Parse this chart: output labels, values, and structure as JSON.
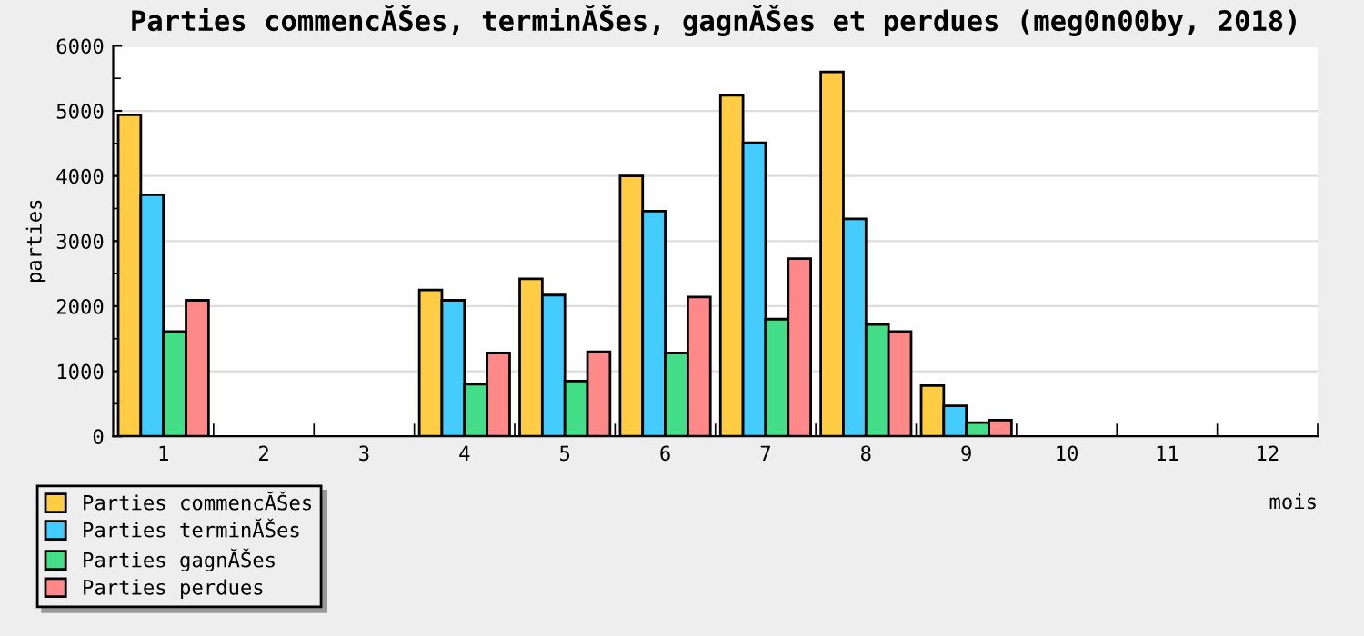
{
  "chart_data": {
    "type": "bar",
    "title": "Parties commencĂŠes, terminĂŠes, gagnĂŠes et perdues (meg0n00by, 2018)",
    "xlabel": "mois",
    "ylabel": "parties",
    "categories": [
      "1",
      "2",
      "3",
      "4",
      "5",
      "6",
      "7",
      "8",
      "9",
      "10",
      "11",
      "12"
    ],
    "series": [
      {
        "name": "Parties commencĂŠes",
        "color": "#ffcc44",
        "values": [
          4940,
          null,
          null,
          2250,
          2420,
          4000,
          5240,
          5600,
          780,
          null,
          null,
          null
        ]
      },
      {
        "name": "Parties terminĂŠes",
        "color": "#44ccff",
        "values": [
          3710,
          null,
          null,
          2090,
          2170,
          3460,
          4510,
          3340,
          470,
          null,
          null,
          null
        ]
      },
      {
        "name": "Parties gagnĂŠes",
        "color": "#44dd88",
        "values": [
          1610,
          null,
          null,
          800,
          850,
          1280,
          1800,
          1720,
          210,
          null,
          null,
          null
        ]
      },
      {
        "name": "Parties perdues",
        "color": "#ff8888",
        "values": [
          2090,
          null,
          null,
          1280,
          1300,
          2140,
          2730,
          1610,
          250,
          null,
          null,
          null
        ]
      }
    ],
    "ylim": [
      0,
      6000
    ],
    "yticks": [
      0,
      1000,
      2000,
      3000,
      4000,
      5000,
      6000
    ],
    "grid": "y",
    "legend": "bottom left"
  }
}
